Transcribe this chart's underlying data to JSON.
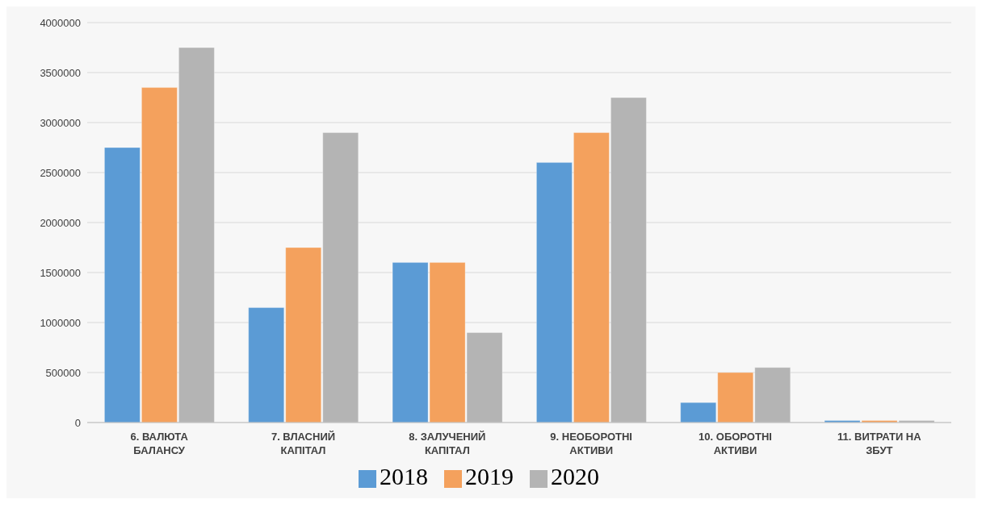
{
  "chart_data": {
    "type": "bar",
    "categories": [
      "6. ВАЛЮТА БАЛАНСУ",
      "7. ВЛАСНИЙ КАПІТАЛ",
      "8. ЗАЛУЧЕНИЙ КАПІТАЛ",
      "9. НЕОБОРОТНІ АКТИВИ",
      "10. ОБОРОТНІ АКТИВИ",
      "11. ВИТРАТИ НА ЗБУТ"
    ],
    "series": [
      {
        "name": "2018",
        "color": "#5b9bd5",
        "values": [
          2750000,
          1150000,
          1600000,
          2600000,
          200000,
          20000
        ]
      },
      {
        "name": "2019",
        "color": "#f4a15d",
        "values": [
          3350000,
          1750000,
          1600000,
          2900000,
          500000,
          20000
        ]
      },
      {
        "name": "2020",
        "color": "#b4b4b4",
        "values": [
          3750000,
          2900000,
          900000,
          3250000,
          550000,
          20000
        ]
      }
    ],
    "ylim": [
      0,
      4000000
    ],
    "yticks": [
      0,
      500000,
      1000000,
      1500000,
      2000000,
      2500000,
      3000000,
      3500000,
      4000000
    ],
    "grid": "y",
    "legend": "bottom"
  }
}
